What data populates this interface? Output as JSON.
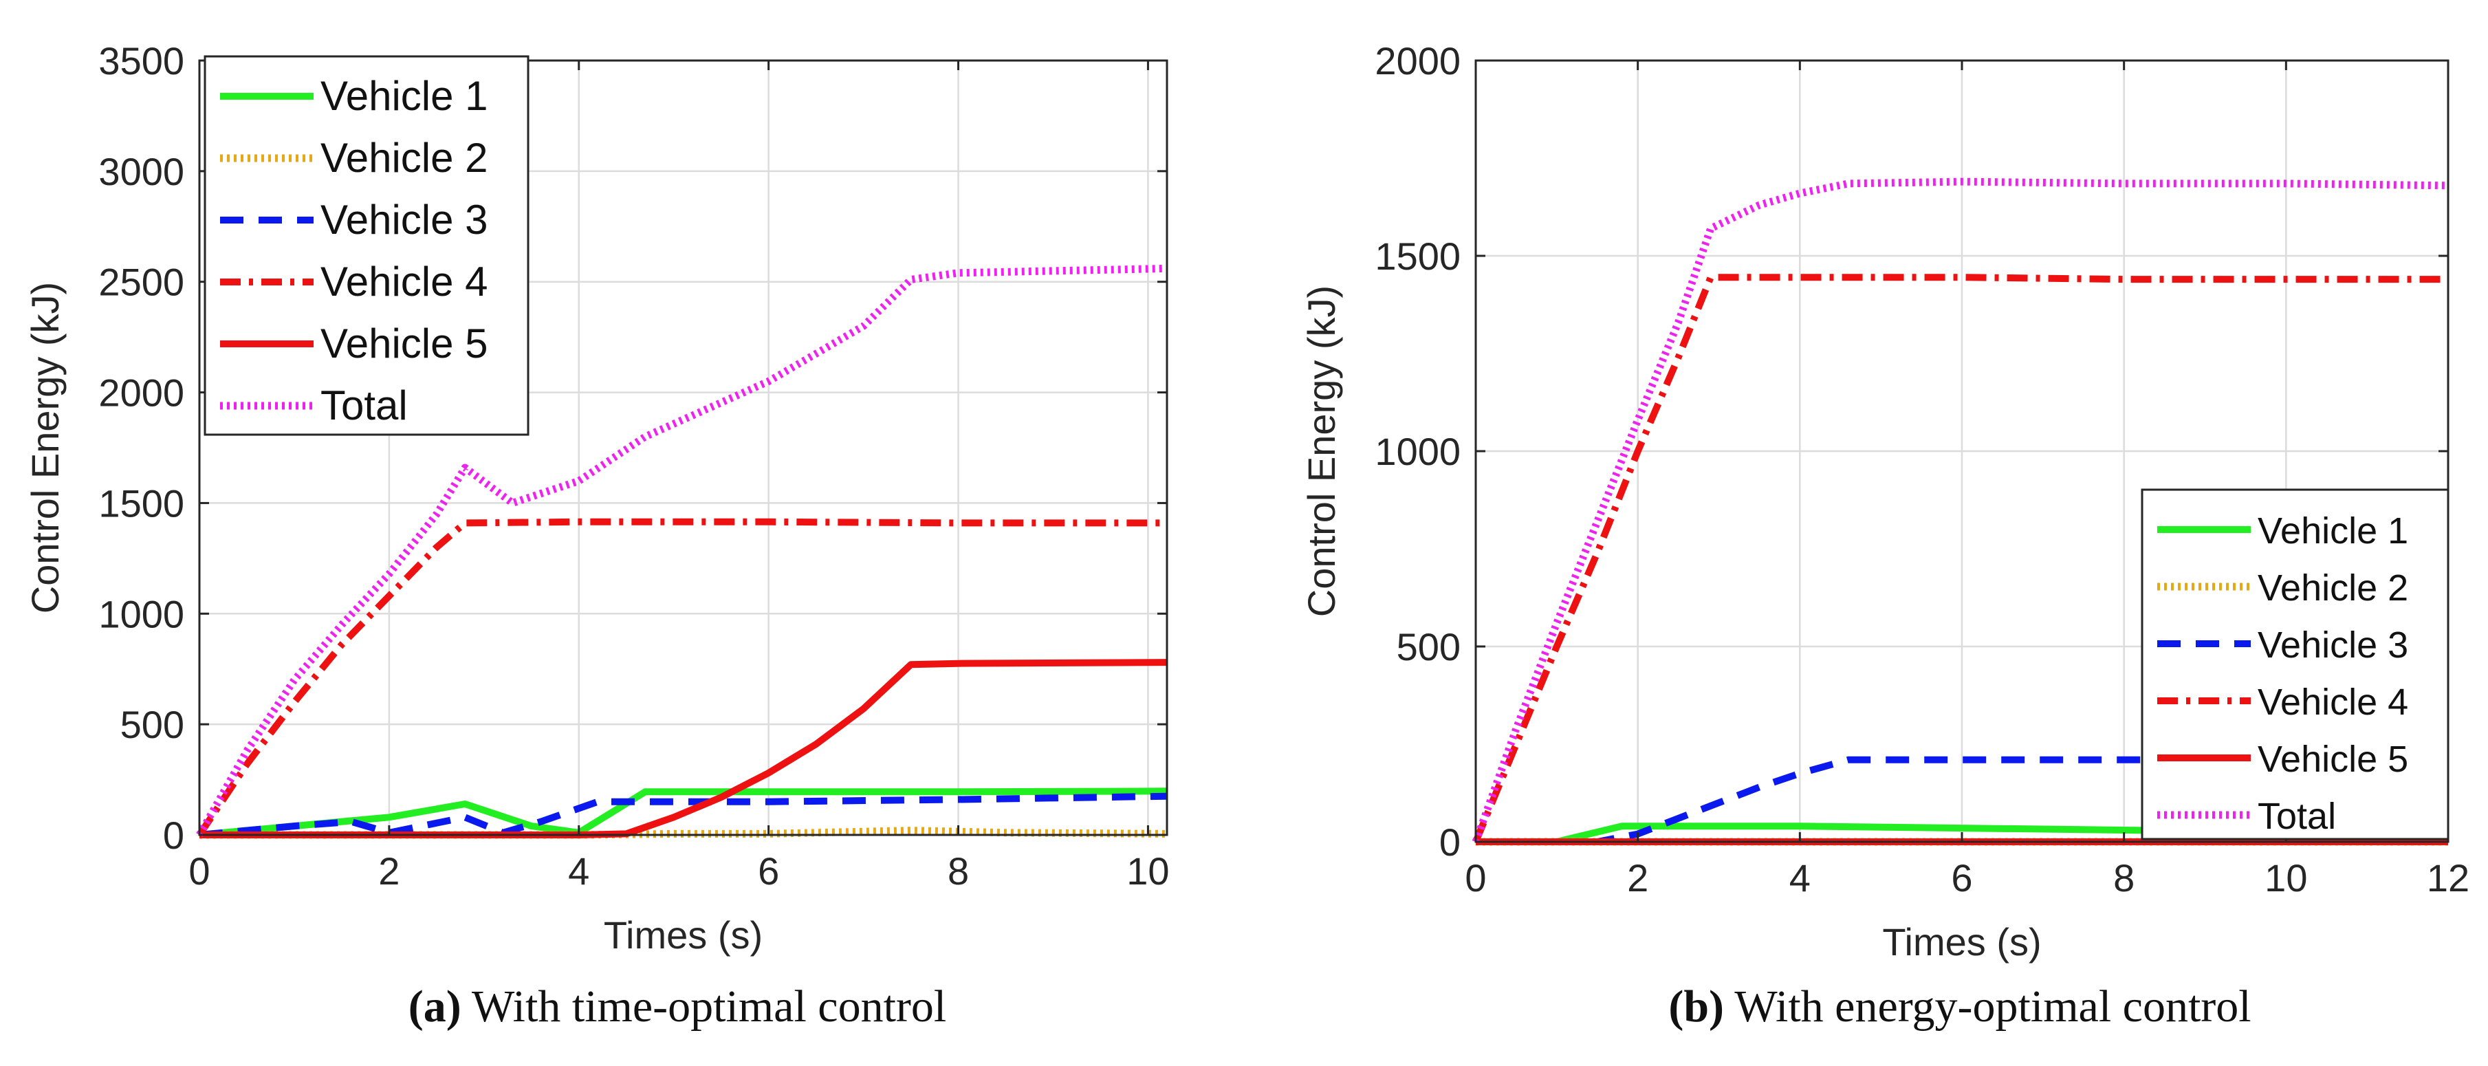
{
  "chart_data": [
    {
      "type": "line",
      "panel_label": "(a)",
      "caption": "With time-optimal control",
      "xlabel": "Times (s)",
      "ylabel": "Control Energy (kJ)",
      "xlim": [
        0,
        10.2
      ],
      "ylim": [
        0,
        3500
      ],
      "xticks": [
        0,
        2,
        4,
        6,
        8,
        10
      ],
      "yticks": [
        0,
        500,
        1000,
        1500,
        2000,
        2500,
        3000,
        3500
      ],
      "grid": true,
      "legend_position": "top-left",
      "series": [
        {
          "name": "Vehicle 1",
          "color": "#22ee22",
          "style": "solid",
          "x": [
            0,
            1,
            2,
            2.8,
            3.5,
            4,
            4.7,
            6,
            8,
            10.2
          ],
          "y": [
            0,
            40,
            80,
            140,
            40,
            10,
            195,
            195,
            195,
            198
          ]
        },
        {
          "name": "Vehicle 2",
          "color": "#e6a817",
          "style": "dotted",
          "x": [
            0,
            2,
            4,
            5,
            6,
            7.5,
            8.5,
            10.2
          ],
          "y": [
            0,
            0,
            0,
            5,
            5,
            20,
            10,
            5
          ]
        },
        {
          "name": "Vehicle 3",
          "color": "#0a1aee",
          "style": "dashed",
          "x": [
            0,
            1,
            1.6,
            2,
            2.8,
            3.2,
            3.6,
            4.2,
            5,
            6,
            8,
            10.2
          ],
          "y": [
            0,
            40,
            60,
            10,
            80,
            10,
            60,
            150,
            150,
            150,
            160,
            175
          ]
        },
        {
          "name": "Vehicle 4",
          "color": "#ee1111",
          "style": "dashdot",
          "x": [
            0,
            0.5,
            1,
            1.5,
            2,
            2.5,
            2.8,
            4,
            6,
            8,
            10.2
          ],
          "y": [
            0,
            320,
            600,
            860,
            1080,
            1300,
            1410,
            1415,
            1415,
            1410,
            1410
          ]
        },
        {
          "name": "Vehicle 5",
          "color": "#ee1111",
          "style": "solid",
          "x": [
            0,
            2,
            4,
            4.5,
            5,
            5.5,
            6,
            6.5,
            7,
            7.5,
            8,
            10.2
          ],
          "y": [
            0,
            0,
            0,
            5,
            80,
            170,
            280,
            410,
            570,
            770,
            775,
            780
          ]
        },
        {
          "name": "Total",
          "color": "#ee22ee",
          "style": "dotted",
          "x": [
            0,
            0.5,
            1,
            1.5,
            2,
            2.5,
            2.8,
            3.3,
            4,
            4.7,
            6,
            7,
            7.5,
            8,
            10.2
          ],
          "y": [
            0,
            380,
            700,
            950,
            1180,
            1450,
            1660,
            1500,
            1600,
            1800,
            2050,
            2300,
            2510,
            2540,
            2560
          ]
        }
      ]
    },
    {
      "type": "line",
      "panel_label": "(b)",
      "caption": "With energy-optimal control",
      "xlabel": "Times (s)",
      "ylabel": "Control Energy (kJ)",
      "xlim": [
        0,
        12
      ],
      "ylim": [
        0,
        2000
      ],
      "xticks": [
        0,
        2,
        4,
        6,
        8,
        10,
        12
      ],
      "yticks": [
        0,
        500,
        1000,
        1500,
        2000
      ],
      "grid": true,
      "legend_position": "bottom-right",
      "series": [
        {
          "name": "Vehicle 1",
          "color": "#22ee22",
          "style": "solid",
          "x": [
            0,
            1,
            1.8,
            4,
            6,
            8,
            10,
            12
          ],
          "y": [
            0,
            0,
            40,
            40,
            35,
            30,
            25,
            20
          ]
        },
        {
          "name": "Vehicle 2",
          "color": "#e6a817",
          "style": "dotted",
          "x": [
            0,
            4,
            8,
            12
          ],
          "y": [
            0,
            0,
            0,
            0
          ]
        },
        {
          "name": "Vehicle 3",
          "color": "#0a1aee",
          "style": "dashed",
          "x": [
            0,
            1.5,
            2,
            2.5,
            3,
            3.5,
            4,
            4.6,
            6,
            8,
            10,
            12
          ],
          "y": [
            0,
            0,
            20,
            60,
            100,
            140,
            175,
            210,
            210,
            210,
            210,
            210
          ]
        },
        {
          "name": "Vehicle 4",
          "color": "#ee1111",
          "style": "dashdot",
          "x": [
            0,
            0.5,
            1,
            1.5,
            2,
            2.5,
            2.9,
            4,
            6,
            8,
            10,
            12
          ],
          "y": [
            0,
            250,
            500,
            740,
            1000,
            1240,
            1445,
            1445,
            1445,
            1440,
            1440,
            1440
          ]
        },
        {
          "name": "Vehicle 5",
          "color": "#ee1111",
          "style": "solid",
          "x": [
            0,
            4,
            8,
            12
          ],
          "y": [
            0,
            0,
            0,
            0
          ]
        },
        {
          "name": "Total",
          "color": "#ee22ee",
          "style": "dotted",
          "x": [
            0,
            0.5,
            1,
            1.5,
            2,
            2.5,
            2.9,
            3.5,
            4,
            4.6,
            6,
            8,
            10,
            12
          ],
          "y": [
            0,
            290,
            560,
            820,
            1080,
            1330,
            1570,
            1630,
            1660,
            1685,
            1690,
            1685,
            1685,
            1680
          ]
        }
      ]
    }
  ]
}
